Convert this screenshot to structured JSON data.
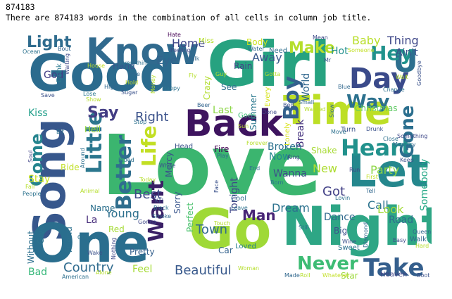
{
  "output": {
    "count_text": "874183",
    "summary_text": "There are 874183 words in the combination of all cells in column job title."
  },
  "wordcloud": {
    "words": [
      {
        "text": "Love",
        "color": "#3bb56f",
        "rot": 0
      },
      {
        "text": "Girl",
        "color": "#27a280",
        "rot": 0
      },
      {
        "text": "Good",
        "color": "#2b6b8e",
        "rot": 0
      },
      {
        "text": "Back",
        "color": "#3e145f",
        "rot": 0
      },
      {
        "text": "Time",
        "color": "#bddf26",
        "rot": 0
      },
      {
        "text": "Song",
        "color": "#37578c",
        "rot": -90
      },
      {
        "text": "Night",
        "color": "#2ea685",
        "rot": 0
      },
      {
        "text": "One",
        "color": "#2a6e8e",
        "rot": 0
      },
      {
        "text": "Go",
        "color": "#9fd937",
        "rot": 0
      },
      {
        "text": "Let",
        "color": "#25878d",
        "rot": 0
      },
      {
        "text": "Know",
        "color": "#306a8e",
        "rot": 0
      },
      {
        "text": "Day",
        "color": "#3a4a8a",
        "rot": 0
      },
      {
        "text": "U",
        "color": "#2d6f8e",
        "rot": 0
      },
      {
        "text": "Heart",
        "color": "#21918c",
        "rot": 0
      },
      {
        "text": "Take",
        "color": "#355f8d",
        "rot": 0
      },
      {
        "text": "Want",
        "color": "#3a1f66",
        "rot": -90
      },
      {
        "text": "Little",
        "color": "#2b778e",
        "rot": -90
      },
      {
        "text": "Better",
        "color": "#2f6e8e",
        "rot": -90
      },
      {
        "text": "Life",
        "color": "#c2df23",
        "rot": -90
      },
      {
        "text": "Boy",
        "color": "#34618d",
        "rot": -90
      },
      {
        "text": "Come",
        "color": "#25848e",
        "rot": -90
      },
      {
        "text": "Never",
        "color": "#3dbc74",
        "rot": 0
      },
      {
        "text": "Gone",
        "color": "#2b6f8e",
        "rot": -90
      },
      {
        "text": "Way",
        "color": "#2c718e",
        "rot": 0
      },
      {
        "text": "Make",
        "color": "#b5de2b",
        "rot": 0
      },
      {
        "text": "Hey",
        "color": "#20928c",
        "rot": 0
      },
      {
        "text": "Light",
        "color": "#2f6c8e",
        "rot": 0
      },
      {
        "text": "Say",
        "color": "#433d84",
        "rot": 0
      },
      {
        "text": "Right",
        "color": "#3b528b",
        "rot": 0
      },
      {
        "text": "Man",
        "color": "#482576",
        "rot": 0
      },
      {
        "text": "Beautiful",
        "color": "#38598c",
        "rot": 0
      },
      {
        "text": "Dream",
        "color": "#2c728e",
        "rot": 0
      },
      {
        "text": "Country",
        "color": "#2f6b8e",
        "rot": 0
      },
      {
        "text": "Best",
        "color": "#3e4989",
        "rot": 0
      },
      {
        "text": "Got",
        "color": "#424086",
        "rot": 0
      },
      {
        "text": "Town",
        "color": "#31688e",
        "rot": 0
      },
      {
        "text": "Young",
        "color": "#2d708e",
        "rot": 0
      },
      {
        "text": "Eye",
        "color": "#33638d",
        "rot": 0
      },
      {
        "text": "Home",
        "color": "#3f4788",
        "rot": 0
      },
      {
        "text": "Away",
        "color": "#38588c",
        "rot": 0
      },
      {
        "text": "Call",
        "color": "#2c738e",
        "rot": 0
      },
      {
        "text": "Baby",
        "color": "#b8de29",
        "rot": 0
      },
      {
        "text": "Thing",
        "color": "#3f4889",
        "rot": 0
      },
      {
        "text": "Party",
        "color": "#8ed645",
        "rot": 0
      },
      {
        "text": "New",
        "color": "#addc30",
        "rot": 0
      },
      {
        "text": "Look",
        "color": "#a2da37",
        "rot": 0
      },
      {
        "text": "Dance",
        "color": "#30698e",
        "rot": 0
      },
      {
        "text": "Road",
        "color": "#2e6d8e",
        "rot": 0
      },
      {
        "text": "Feel",
        "color": "#a5db36",
        "rot": 0
      },
      {
        "text": "Bad",
        "color": "#35b779",
        "rot": 0
      },
      {
        "text": "Somebody",
        "color": "#22a785",
        "rot": -90
      },
      {
        "text": "Stay",
        "color": "#c8e020",
        "rot": 0
      },
      {
        "text": "Kiss",
        "color": "#1f9e89",
        "rot": 0
      },
      {
        "text": "Hot",
        "color": "#21908d",
        "rot": 0
      },
      {
        "text": "Ain't",
        "color": "#3b518b",
        "rot": 0
      },
      {
        "text": "Christmas",
        "color": "#5ec962",
        "rot": 0
      },
      {
        "text": "Summer",
        "color": "#2a788e",
        "rot": -90
      },
      {
        "text": "World",
        "color": "#31678e",
        "rot": -90
      },
      {
        "text": "Break",
        "color": "#46337e",
        "rot": -90
      },
      {
        "text": "Broken",
        "color": "#2c728e",
        "rot": 0
      },
      {
        "text": "Now",
        "color": "#23898e",
        "rot": 0
      },
      {
        "text": "Wanna",
        "color": "#3c4f8a",
        "rot": 0
      },
      {
        "text": "Tonight",
        "color": "#3f4788",
        "rot": -90
      },
      {
        "text": "Perfect",
        "color": "#4ac16d",
        "rot": -90
      },
      {
        "text": "Sorry",
        "color": "#39568c",
        "rot": -90
      },
      {
        "text": "Crazy",
        "color": "#b2dd2d",
        "rot": -90
      },
      {
        "text": "Last",
        "color": "#8bd646",
        "rot": 0
      },
      {
        "text": "See",
        "color": "#2e6e8e",
        "rot": 0
      },
      {
        "text": "Rain",
        "color": "#414487",
        "rot": 0
      },
      {
        "text": "Body",
        "color": "#cde11d",
        "rot": 0
      },
      {
        "text": "Hand",
        "color": "#39568c",
        "rot": 0
      },
      {
        "text": "God",
        "color": "#433e85",
        "rot": 0
      },
      {
        "text": "Name",
        "color": "#2d718e",
        "rot": 0
      },
      {
        "text": "La",
        "color": "#472d7b",
        "rot": 0
      },
      {
        "text": "Fire",
        "color": "#440154",
        "rot": 0
      },
      {
        "text": "Big",
        "color": "#3b518b",
        "rot": 0
      },
      {
        "text": "Every",
        "color": "#d5e21a",
        "rot": -90
      },
      {
        "text": "Shake",
        "color": "#a8db34",
        "rot": 0
      },
      {
        "text": "Ride",
        "color": "#c0df25",
        "rot": 0
      },
      {
        "text": "Hell",
        "color": "#9bd93c",
        "rot": 0
      },
      {
        "text": "Mercy",
        "color": "#3b528b",
        "rot": -90
      },
      {
        "text": "Friend",
        "color": "#2d718e",
        "rot": -90
      },
      {
        "text": "Star",
        "color": "#9dd93b",
        "rot": 0
      },
      {
        "text": "Without",
        "color": "#2d708e",
        "rot": -90
      },
      {
        "text": "Give",
        "color": "#2c738e",
        "rot": -90
      },
      {
        "text": "Lonely",
        "color": "#d8e219",
        "rot": -90
      },
      {
        "text": "Pretty",
        "color": "#35608d",
        "rot": 0
      },
      {
        "text": "Car",
        "color": "#33628d",
        "rot": 0
      },
      {
        "text": "Red",
        "color": "#a5db36",
        "rot": 0
      },
      {
        "text": "Drink",
        "color": "#2a788e",
        "rot": -90
      },
      {
        "text": "Goes",
        "color": "#3dbc74",
        "rot": 0
      },
      {
        "text": "Walk",
        "color": "#31688e",
        "rot": 0
      },
      {
        "text": "Loved",
        "color": "#277f8e",
        "rot": 0
      },
      {
        "text": "Sweet",
        "color": "#2d708e",
        "rot": 0
      },
      {
        "text": "Turn",
        "color": "#3b528b",
        "rot": 0
      },
      {
        "text": "Heaven",
        "color": "#414487",
        "rot": 0
      },
      {
        "text": "Cool",
        "color": "#2e6e8e",
        "rot": 0
      },
      {
        "text": "Hate",
        "color": "#440154",
        "rot": 0
      },
      {
        "text": "Miss",
        "color": "#b5de2b",
        "rot": 0
      },
      {
        "text": "Feeling",
        "color": "#3e4a89",
        "rot": 0
      },
      {
        "text": "Ocean",
        "color": "#2c728e",
        "rot": 0
      },
      {
        "text": "Bout",
        "color": "#32648e",
        "rot": 0
      },
      {
        "text": "Talk",
        "color": "#31688e",
        "rot": 0
      },
      {
        "text": "Mean",
        "color": "#3e4989",
        "rot": 0
      },
      {
        "text": "Need",
        "color": "#2e6e8e",
        "rot": 0
      },
      {
        "text": "Someone",
        "color": "#c2df23",
        "rot": 0
      },
      {
        "text": "Goodbye",
        "color": "#3b528b",
        "rot": -90
      },
      {
        "text": "Water",
        "color": "#31688e",
        "rot": 0
      },
      {
        "text": "Everything",
        "color": "#2d708e",
        "rot": 0
      },
      {
        "text": "Lose",
        "color": "#2a788e",
        "rot": 0
      },
      {
        "text": "Save",
        "color": "#3b528b",
        "rot": 0
      },
      {
        "text": "High",
        "color": "#31688e",
        "rot": 0
      },
      {
        "text": "Hold",
        "color": "#c2df23",
        "rot": 0
      },
      {
        "text": "Sugar",
        "color": "#3b528b",
        "rot": 0
      },
      {
        "text": "Happy",
        "color": "#2c728e",
        "rot": 0
      },
      {
        "text": "Money",
        "color": "#b5de2b",
        "rot": -90
      },
      {
        "text": "Blue",
        "color": "#31688e",
        "rot": 0
      },
      {
        "text": "Change",
        "color": "#2d708e",
        "rot": 0
      },
      {
        "text": "Wait",
        "color": "#b5de2b",
        "rot": 0
      },
      {
        "text": "Beer",
        "color": "#32648e",
        "rot": 0
      },
      {
        "text": "Bed",
        "color": "#3b528b",
        "rot": 0
      },
      {
        "text": "Small",
        "color": "#31688e",
        "rot": 0
      },
      {
        "text": "Wanted",
        "color": "#b5de2b",
        "rot": 0
      },
      {
        "text": "Done",
        "color": "#3e4989",
        "rot": 0
      },
      {
        "text": "Stop",
        "color": "#2c728e",
        "rot": 0
      },
      {
        "text": "Drunk",
        "color": "#3b528b",
        "rot": 0
      },
      {
        "text": "Close",
        "color": "#2d708e",
        "rot": 0
      },
      {
        "text": "Memory",
        "color": "#31688e",
        "rot": 0
      },
      {
        "text": "Something",
        "color": "#3e4989",
        "rot": 0
      },
      {
        "text": "Soul",
        "color": "#414487",
        "rot": -90
      },
      {
        "text": "Around",
        "color": "#2d708e",
        "rot": -90
      },
      {
        "text": "Head",
        "color": "#3b528b",
        "rot": 0
      },
      {
        "text": "Still",
        "color": "#2c728e",
        "rot": 0
      },
      {
        "text": "Play",
        "color": "#31688e",
        "rot": 0
      },
      {
        "text": "Forever",
        "color": "#b5de2b",
        "rot": 0
      },
      {
        "text": "King",
        "color": "#3e4989",
        "rot": 0
      },
      {
        "text": "End",
        "color": "#2d708e",
        "rot": 0
      },
      {
        "text": "Run",
        "color": "#414487",
        "rot": 0
      },
      {
        "text": "Keep",
        "color": "#3b528b",
        "rot": 0
      },
      {
        "text": "First",
        "color": "#c2df23",
        "rot": 0
      },
      {
        "text": "Tell",
        "color": "#31688e",
        "rot": 0
      },
      {
        "text": "Fall",
        "color": "#b5de2b",
        "rot": 0
      },
      {
        "text": "People",
        "color": "#2c728e",
        "rot": 0
      },
      {
        "text": "Animal",
        "color": "#b5de2b",
        "rot": 0
      },
      {
        "text": "Kill",
        "color": "#3b528b",
        "rot": 0
      },
      {
        "text": "Black",
        "color": "#2d708e",
        "rot": 0
      },
      {
        "text": "Smoke",
        "color": "#31688e",
        "rot": 0
      },
      {
        "text": "Gonna",
        "color": "#3e4989",
        "rot": 0
      },
      {
        "text": "Leave",
        "color": "#2c728e",
        "rot": 0
      },
      {
        "text": "Face",
        "color": "#3b528b",
        "rot": -90
      },
      {
        "text": "Lovin",
        "color": "#2d708e",
        "rot": 0
      },
      {
        "text": "Queen",
        "color": "#31688e",
        "rot": 0
      },
      {
        "text": "Easy",
        "color": "#3e4989",
        "rot": 0
      },
      {
        "text": "Hard",
        "color": "#b5de2b",
        "rot": 0
      },
      {
        "text": "Wake",
        "color": "#3b528b",
        "rot": 0
      },
      {
        "text": "Church",
        "color": "#2c728e",
        "rot": 0
      },
      {
        "text": "Alone",
        "color": "#b5de2b",
        "rot": 0
      },
      {
        "text": "American",
        "color": "#2d708e",
        "rot": 0
      },
      {
        "text": "Made",
        "color": "#31688e",
        "rot": 0
      },
      {
        "text": "Roll",
        "color": "#b5de2b",
        "rot": 0
      },
      {
        "text": "Whatever",
        "color": "#c2df23",
        "rot": 0
      },
      {
        "text": "Boot",
        "color": "#3b528b",
        "rot": 0
      },
      {
        "text": "Diamond",
        "color": "#31688e",
        "rot": -90
      },
      {
        "text": "Touch",
        "color": "#b5de2b",
        "rot": 0
      },
      {
        "text": "Nothing",
        "color": "#3e4989",
        "rot": -90
      },
      {
        "text": "Born",
        "color": "#2c728e",
        "rot": 0
      },
      {
        "text": "Woman",
        "color": "#b5de2b",
        "rot": 0
      },
      {
        "text": "Wine",
        "color": "#3b528b",
        "rot": 0
      },
      {
        "text": "Show",
        "color": "#b5de2b",
        "rot": 0
      },
      {
        "text": "House",
        "color": "#c2df23",
        "rot": 0
      },
      {
        "text": "Today",
        "color": "#b5de2b",
        "rot": 0
      },
      {
        "text": "White",
        "color": "#3b528b",
        "rot": 0
      },
      {
        "text": "Move",
        "color": "#2d708e",
        "rot": 0
      },
      {
        "text": "Slow",
        "color": "#31688e",
        "rot": -90
      },
      {
        "text": "Guy",
        "color": "#b5de2b",
        "rot": 0
      },
      {
        "text": "Waiting",
        "color": "#3e4989",
        "rot": -90
      },
      {
        "text": "Bit",
        "color": "#2c728e",
        "rot": 0
      },
      {
        "text": "Gotta",
        "color": "#b5de2b",
        "rot": 0
      },
      {
        "text": "Mr",
        "color": "#3b528b",
        "rot": 0
      },
      {
        "text": "Blood",
        "color": "#2d708e",
        "rot": 0
      },
      {
        "text": "Sun",
        "color": "#b5de2b",
        "rot": 0
      },
      {
        "text": "Free",
        "color": "#31688e",
        "rot": 0
      },
      {
        "text": "Fly",
        "color": "#b5de2b",
        "rot": 0
      }
    ]
  }
}
